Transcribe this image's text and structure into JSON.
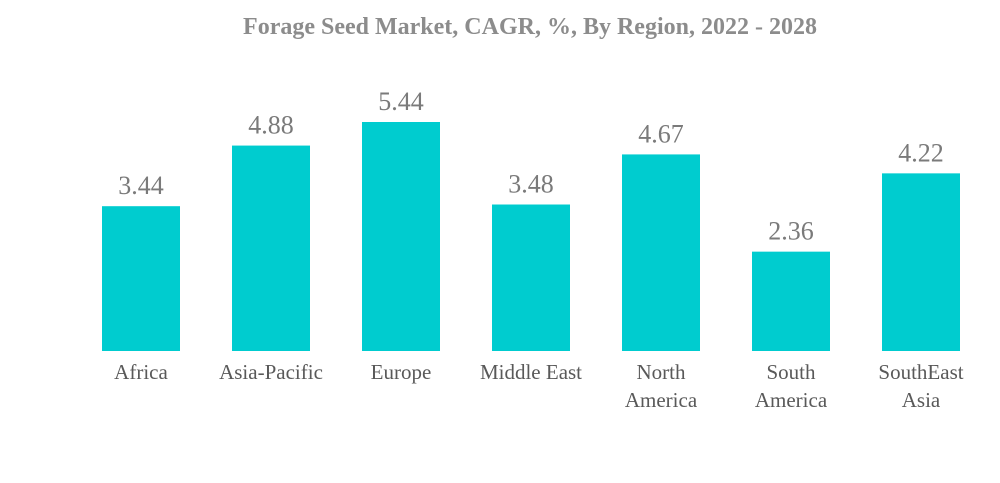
{
  "chart_data": {
    "type": "bar",
    "title": "Forage Seed Market, CAGR, %, By Region, 2022 - 2028",
    "categories": [
      [
        "Africa"
      ],
      [
        "Asia-Pacific"
      ],
      [
        "Europe"
      ],
      [
        "Middle East"
      ],
      [
        "North",
        "America"
      ],
      [
        "South",
        "America"
      ],
      [
        "SouthEast",
        "Asia"
      ]
    ],
    "values": [
      3.44,
      4.88,
      5.44,
      3.48,
      4.67,
      2.36,
      4.22
    ],
    "value_labels": [
      "3.44",
      "4.88",
      "5.44",
      "3.48",
      "4.67",
      "2.36",
      "4.22"
    ],
    "xlabel": "",
    "ylabel": "",
    "ylim": [
      0,
      5.44
    ],
    "grid": false,
    "legend": "none",
    "bar_color": "#00cccf"
  }
}
